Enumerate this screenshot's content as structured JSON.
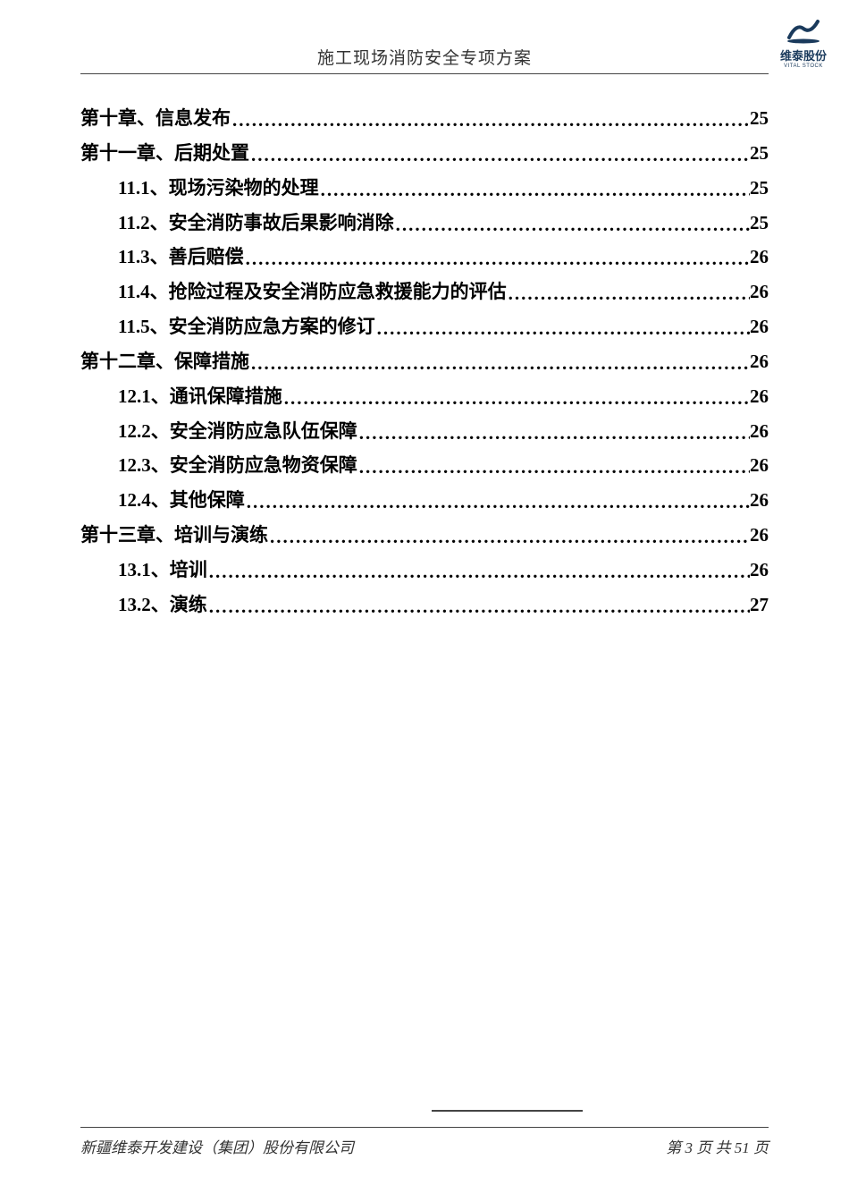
{
  "header": {
    "title": "施工现场消防安全专项方案",
    "logo_cn": "维泰股份",
    "logo_en": "VITAL STOCK"
  },
  "toc": {
    "entries": [
      {
        "label": "第十章、信息发布",
        "page": "25",
        "level": 0
      },
      {
        "label": "第十一章、后期处置",
        "page": "25",
        "level": 0
      },
      {
        "label": "11.1、现场污染物的处理",
        "page": "25",
        "level": 1
      },
      {
        "label": "11.2、安全消防事故后果影响消除",
        "page": "25",
        "level": 1
      },
      {
        "label": "11.3、善后赔偿",
        "page": "26",
        "level": 1
      },
      {
        "label": "11.4、抢险过程及安全消防应急救援能力的评估",
        "page": "26",
        "level": 1
      },
      {
        "label": "11.5、安全消防应急方案的修订",
        "page": "26",
        "level": 1
      },
      {
        "label": "第十二章、保障措施",
        "page": "26",
        "level": 0
      },
      {
        "label": "12.1、通讯保障措施",
        "page": "26",
        "level": 1
      },
      {
        "label": "12.2、安全消防应急队伍保障",
        "page": "26",
        "level": 1
      },
      {
        "label": "12.3、安全消防应急物资保障",
        "page": "26",
        "level": 1
      },
      {
        "label": "12.4、其他保障",
        "page": "26",
        "level": 1
      },
      {
        "label": "第十三章、培训与演练",
        "page": "26",
        "level": 0
      },
      {
        "label": "13.1、培训",
        "page": "26",
        "level": 1
      },
      {
        "label": "13.2、演练",
        "page": "27",
        "level": 1
      }
    ]
  },
  "footer": {
    "company": "新疆维泰开发建设（集团）股份有限公司",
    "page_current": "3",
    "page_total": "51",
    "page_label_prefix": "第",
    "page_label_mid": "页  共",
    "page_label_suffix": "页"
  }
}
